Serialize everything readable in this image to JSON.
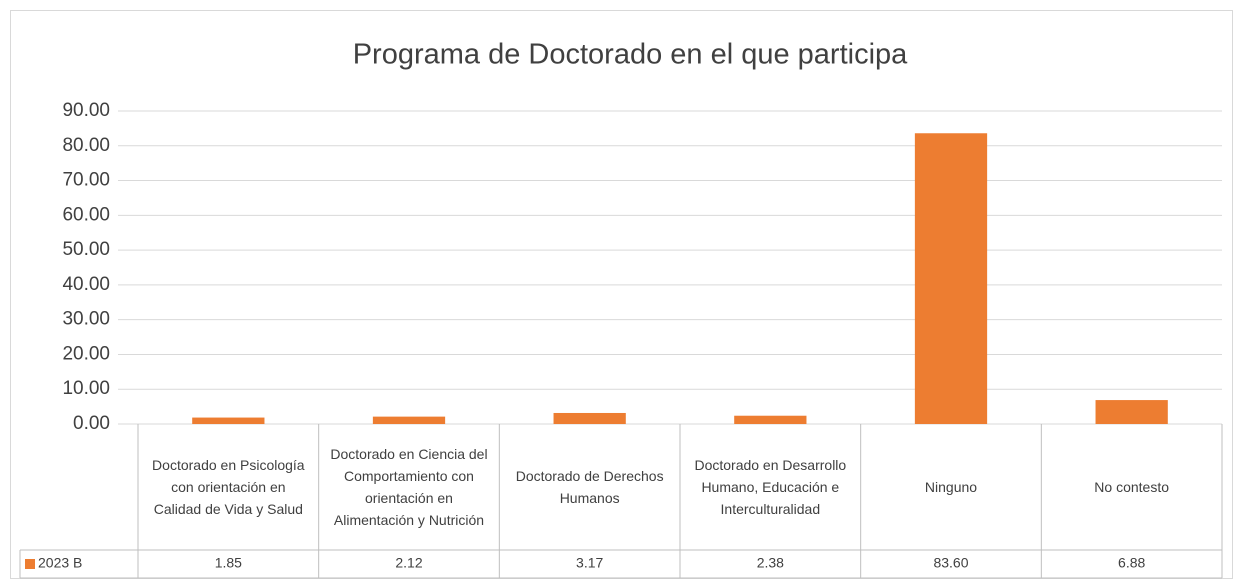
{
  "chart_data": {
    "type": "bar",
    "title": "Programa de Doctorado en el que participa",
    "categories": [
      "Doctorado en Psicología con orientación en Calidad de Vida y Salud",
      "Doctorado en Ciencia del Comportamiento con orientación en Alimentación y Nutrición",
      "Doctorado de Derechos Humanos",
      "Doctorado en Desarrollo Humano, Educación e Interculturalidad",
      "Ninguno",
      "No contesto"
    ],
    "series": [
      {
        "name": "2023 B",
        "color": "#ed7d31",
        "values": [
          1.85,
          2.12,
          3.17,
          2.38,
          83.6,
          6.88
        ],
        "value_labels": [
          "1.85",
          "2.12",
          "3.17",
          "2.38",
          "83.60",
          "6.88"
        ]
      }
    ],
    "ylim": [
      0,
      90
    ],
    "yticks": [
      {
        "value": 0,
        "label": "0.00"
      },
      {
        "value": 10,
        "label": "10.00"
      },
      {
        "value": 20,
        "label": "20.00"
      },
      {
        "value": 30,
        "label": "30.00"
      },
      {
        "value": 40,
        "label": "40.00"
      },
      {
        "value": 50,
        "label": "50.00"
      },
      {
        "value": 60,
        "label": "60.00"
      },
      {
        "value": 70,
        "label": "70.00"
      },
      {
        "value": 80,
        "label": "80.00"
      },
      {
        "value": 90,
        "label": "90.00"
      }
    ],
    "grid": true
  }
}
